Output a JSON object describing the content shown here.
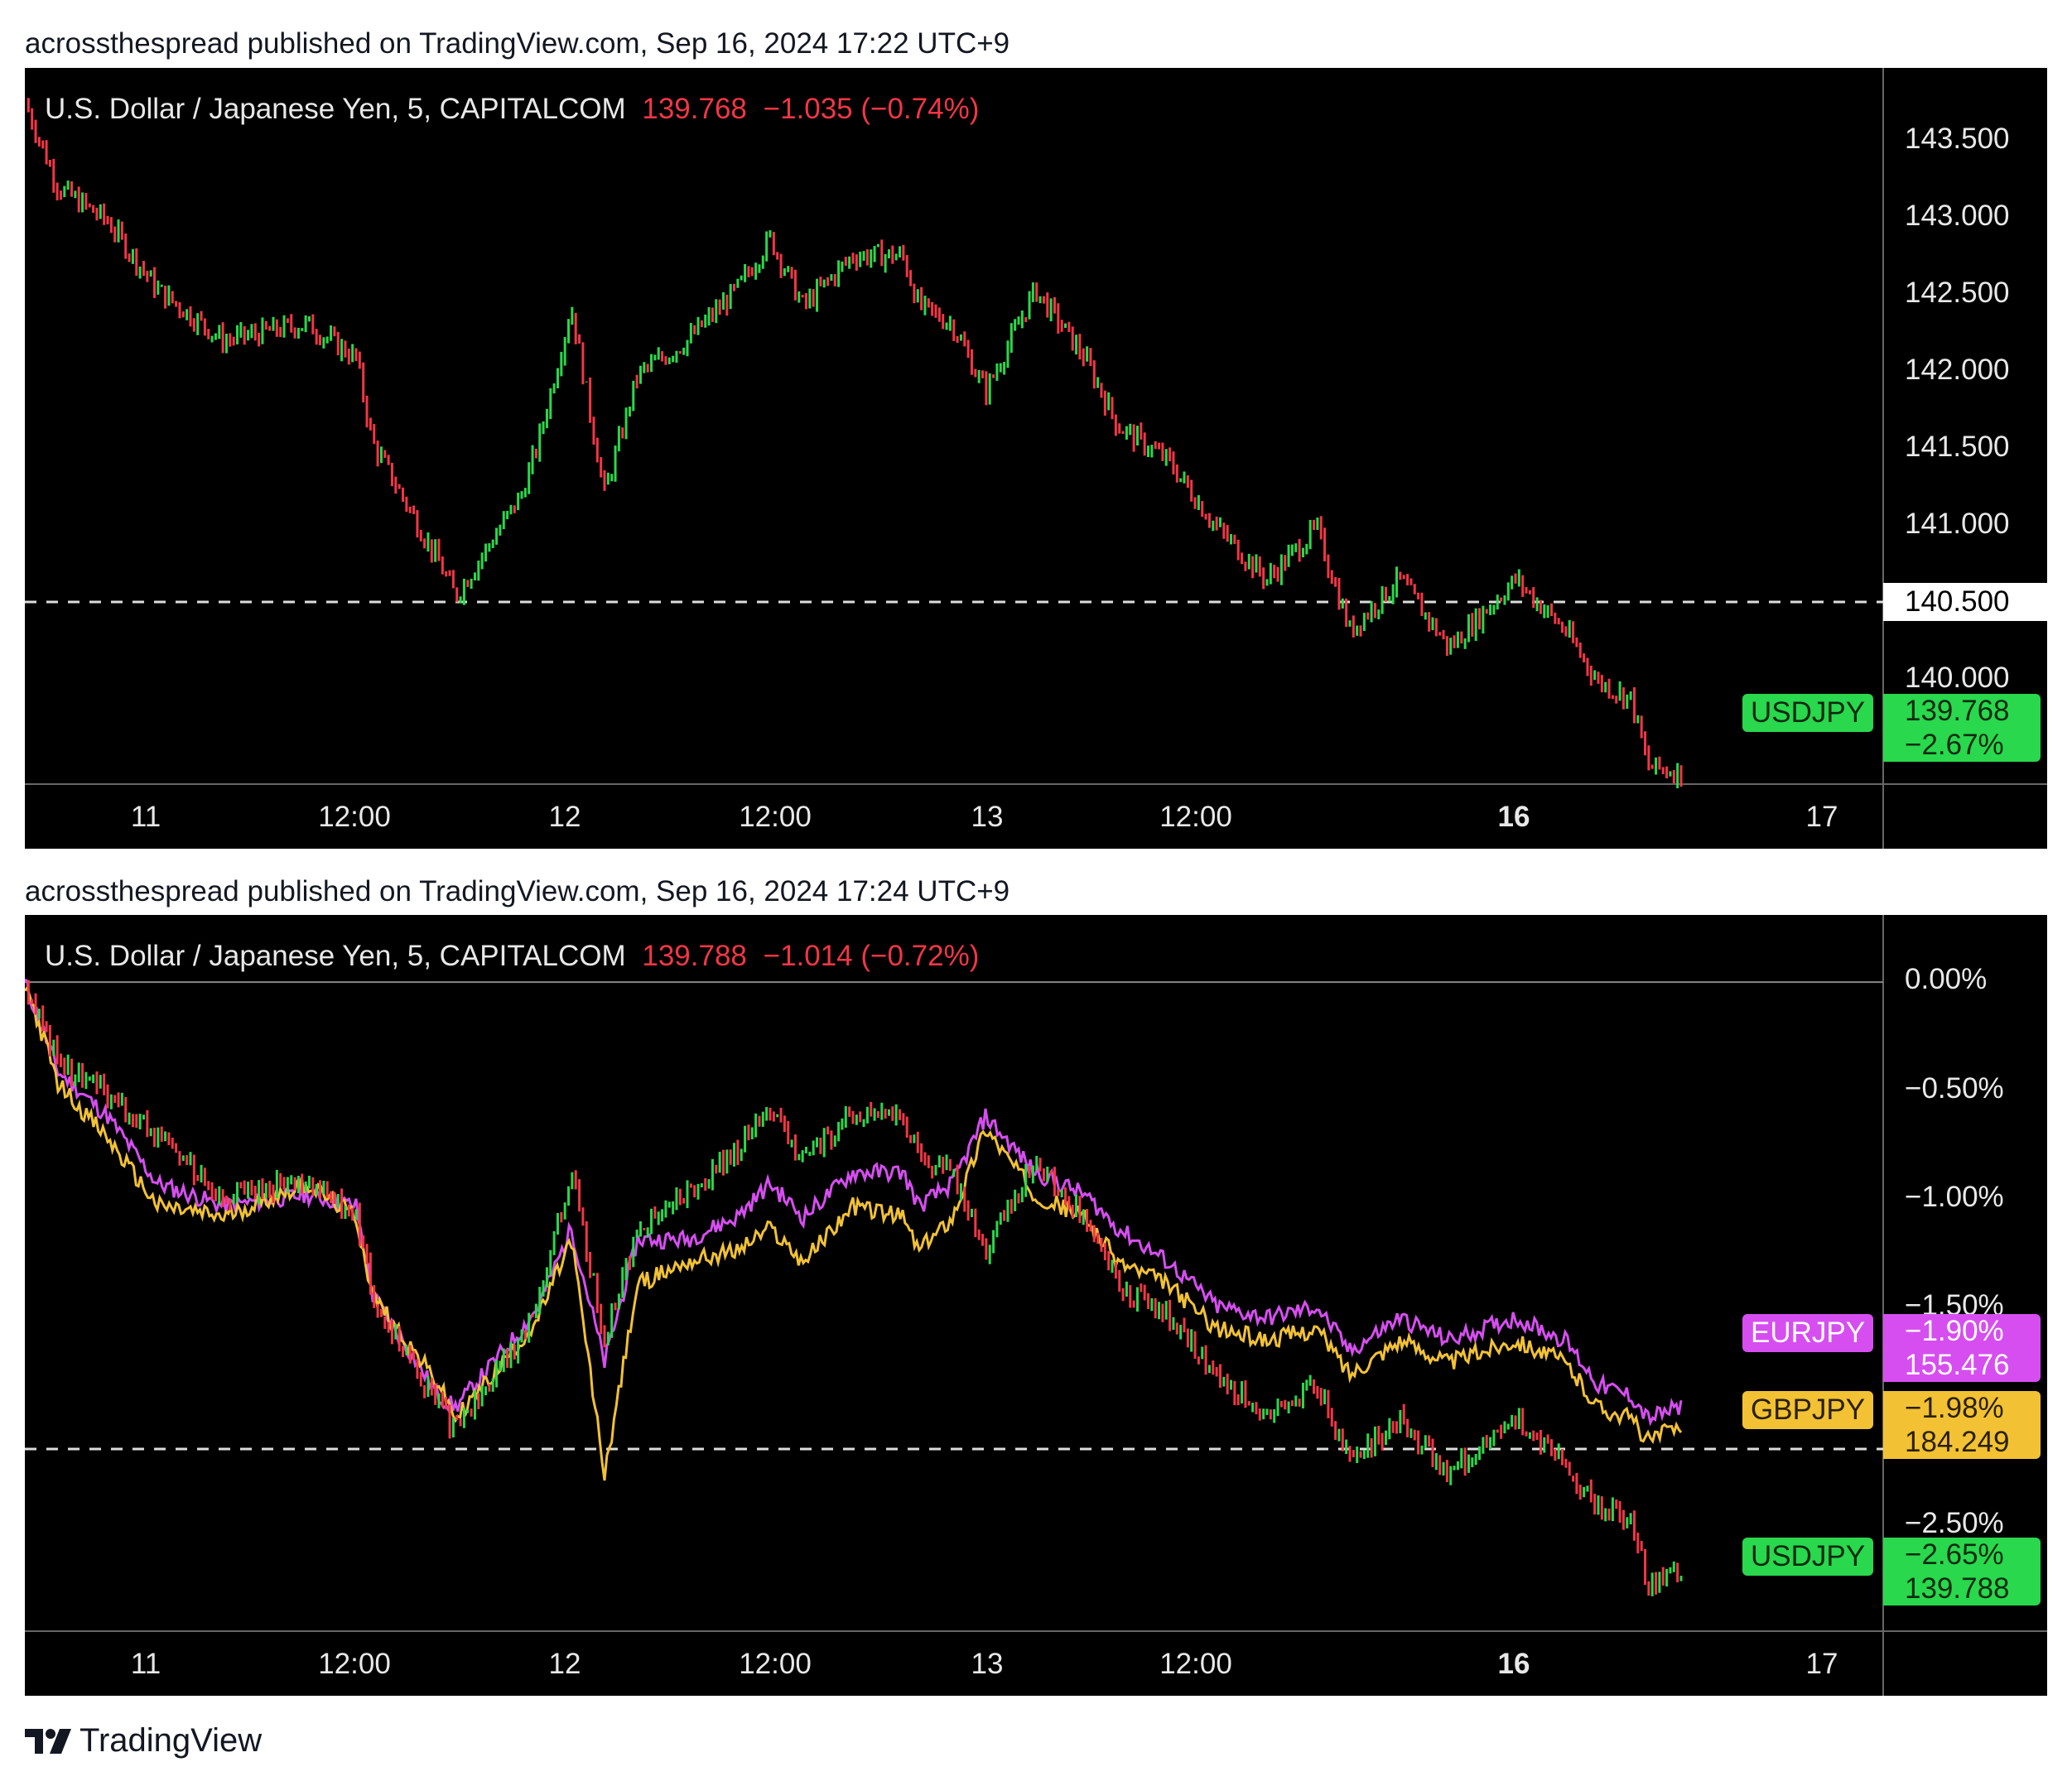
{
  "attributions": [
    "acrossthespread published on TradingView.com, Sep 16, 2024 17:22 UTC+9",
    "acrossthespread published on TradingView.com, Sep 16, 2024 17:24 UTC+9"
  ],
  "footer": {
    "logo_text": "TradingView"
  },
  "colors": {
    "up": "#29d84c",
    "down": "#f23645",
    "eurjpy": "#d64ef0",
    "gbpjpy": "#f2c234",
    "usdjpy": "#29d84c"
  },
  "panels": [
    {
      "legend": {
        "symbol": "U.S. Dollar / Japanese Yen, 5, CAPITALCOM",
        "last": "139.768",
        "change": "−1.035 (−0.74%)"
      },
      "y_ticks": [
        "143.500",
        "143.000",
        "142.500",
        "142.000",
        "141.500",
        "141.000",
        "140.000"
      ],
      "crosshair_label": "140.500",
      "x_ticks": [
        "11",
        "12:00",
        "12",
        "12:00",
        "13",
        "12:00",
        "16",
        "17"
      ],
      "badges": [
        {
          "name": "USDJPY",
          "line1": "139.768",
          "line2": "−2.67%",
          "color": "green"
        }
      ]
    },
    {
      "legend": {
        "symbol": "U.S. Dollar / Japanese Yen, 5, CAPITALCOM",
        "last": "139.788",
        "change": "−1.014 (−0.72%)"
      },
      "y_ticks": [
        "0.00%",
        "−0.50%",
        "−1.00%",
        "−1.50%",
        "−2.50%"
      ],
      "x_ticks": [
        "11",
        "12:00",
        "12",
        "12:00",
        "13",
        "12:00",
        "16",
        "17"
      ],
      "badges": [
        {
          "name": "EURJPY",
          "line1": "−1.90%",
          "line2": "155.476",
          "color": "magenta"
        },
        {
          "name": "GBPJPY",
          "line1": "−1.98%",
          "line2": "184.249",
          "color": "yellow"
        },
        {
          "name": "USDJPY",
          "line1": "−2.65%",
          "line2": "139.788",
          "color": "green"
        }
      ]
    }
  ],
  "chart_data": [
    {
      "type": "line",
      "title": "U.S. Dollar / Japanese Yen, 5, CAPITALCOM",
      "ylim": [
        139.7,
        143.9
      ],
      "x_labels": [
        "11",
        "12:00",
        "12",
        "12:00",
        "13",
        "12:00",
        "16",
        "17"
      ],
      "series": [
        {
          "name": "USDJPY",
          "x": [
            0,
            0.02,
            0.05,
            0.08,
            0.12,
            0.17,
            0.2,
            0.21,
            0.25,
            0.26,
            0.3,
            0.31,
            0.33,
            0.35,
            0.37,
            0.4,
            0.43,
            0.45,
            0.47,
            0.5,
            0.53,
            0.54,
            0.56,
            0.58,
            0.61,
            0.64,
            0.66,
            0.69,
            0.72,
            0.75,
            0.78,
            0.8,
            0.83,
            0.86,
            0.9,
            0.93,
            0.95,
            0.97,
            0.98,
            1.0
          ],
          "values": [
            143.7,
            143.2,
            143.0,
            142.6,
            142.3,
            142.4,
            142.2,
            141.7,
            141.0,
            140.8,
            141.4,
            141.7,
            142.5,
            141.4,
            142.1,
            142.3,
            142.6,
            142.9,
            142.5,
            142.8,
            142.8,
            142.5,
            142.4,
            142.0,
            142.6,
            142.2,
            141.8,
            141.6,
            141.2,
            140.9,
            141.2,
            140.6,
            140.9,
            140.5,
            140.9,
            140.6,
            140.3,
            140.2,
            139.8,
            139.77
          ]
        }
      ]
    },
    {
      "type": "line",
      "title": "U.S. Dollar / Japanese Yen, 5, CAPITALCOM",
      "ylabel": "",
      "ylim": [
        -2.9,
        0.3
      ],
      "x_labels": [
        "11",
        "12:00",
        "12",
        "12:00",
        "13",
        "12:00",
        "16",
        "17"
      ],
      "series": [
        {
          "name": "USDJPY",
          "x": [
            0,
            0.02,
            0.05,
            0.08,
            0.12,
            0.17,
            0.2,
            0.21,
            0.25,
            0.26,
            0.3,
            0.31,
            0.33,
            0.35,
            0.37,
            0.4,
            0.43,
            0.45,
            0.47,
            0.5,
            0.53,
            0.54,
            0.56,
            0.58,
            0.61,
            0.64,
            0.66,
            0.69,
            0.72,
            0.75,
            0.78,
            0.8,
            0.83,
            0.86,
            0.9,
            0.93,
            0.95,
            0.97,
            0.98,
            1.0
          ],
          "values": [
            0.0,
            -0.35,
            -0.5,
            -0.7,
            -0.95,
            -0.9,
            -1.05,
            -1.4,
            -1.9,
            -2.0,
            -1.6,
            -1.4,
            -0.85,
            -1.6,
            -1.1,
            -0.95,
            -0.75,
            -0.55,
            -0.8,
            -0.6,
            -0.6,
            -0.8,
            -0.85,
            -1.2,
            -0.8,
            -1.05,
            -1.35,
            -1.5,
            -1.75,
            -1.95,
            -1.8,
            -2.15,
            -1.95,
            -2.2,
            -1.95,
            -2.15,
            -2.35,
            -2.4,
            -2.7,
            -2.65
          ]
        },
        {
          "name": "EURJPY",
          "x": [
            0,
            0.02,
            0.05,
            0.08,
            0.12,
            0.17,
            0.2,
            0.21,
            0.25,
            0.26,
            0.3,
            0.31,
            0.33,
            0.35,
            0.37,
            0.4,
            0.43,
            0.45,
            0.47,
            0.5,
            0.53,
            0.54,
            0.56,
            0.58,
            0.61,
            0.64,
            0.66,
            0.69,
            0.72,
            0.75,
            0.78,
            0.8,
            0.83,
            0.86,
            0.9,
            0.93,
            0.95,
            0.97,
            0.98,
            1.0
          ],
          "values": [
            0.0,
            -0.4,
            -0.6,
            -0.9,
            -1.0,
            -0.95,
            -1.0,
            -1.4,
            -1.85,
            -1.9,
            -1.55,
            -1.45,
            -1.1,
            -1.7,
            -1.15,
            -1.15,
            -1.05,
            -0.9,
            -1.05,
            -0.85,
            -0.85,
            -1.0,
            -0.9,
            -0.6,
            -0.85,
            -0.95,
            -1.1,
            -1.25,
            -1.45,
            -1.5,
            -1.45,
            -1.65,
            -1.5,
            -1.6,
            -1.5,
            -1.6,
            -1.8,
            -1.85,
            -1.95,
            -1.9
          ]
        },
        {
          "name": "GBPJPY",
          "x": [
            0,
            0.02,
            0.05,
            0.08,
            0.12,
            0.17,
            0.2,
            0.21,
            0.25,
            0.26,
            0.3,
            0.31,
            0.33,
            0.35,
            0.37,
            0.4,
            0.43,
            0.45,
            0.47,
            0.5,
            0.53,
            0.54,
            0.56,
            0.58,
            0.61,
            0.64,
            0.66,
            0.69,
            0.72,
            0.75,
            0.78,
            0.8,
            0.83,
            0.86,
            0.9,
            0.93,
            0.95,
            0.97,
            0.98,
            1.0
          ],
          "values": [
            0.0,
            -0.45,
            -0.7,
            -1.0,
            -1.05,
            -0.9,
            -1.05,
            -1.4,
            -1.8,
            -1.95,
            -1.6,
            -1.5,
            -1.15,
            -2.2,
            -1.35,
            -1.25,
            -1.2,
            -1.1,
            -1.25,
            -1.0,
            -1.05,
            -1.2,
            -1.05,
            -0.65,
            -0.95,
            -1.05,
            -1.25,
            -1.35,
            -1.55,
            -1.6,
            -1.55,
            -1.75,
            -1.6,
            -1.7,
            -1.6,
            -1.7,
            -1.9,
            -1.95,
            -2.05,
            -1.98
          ]
        }
      ]
    }
  ]
}
